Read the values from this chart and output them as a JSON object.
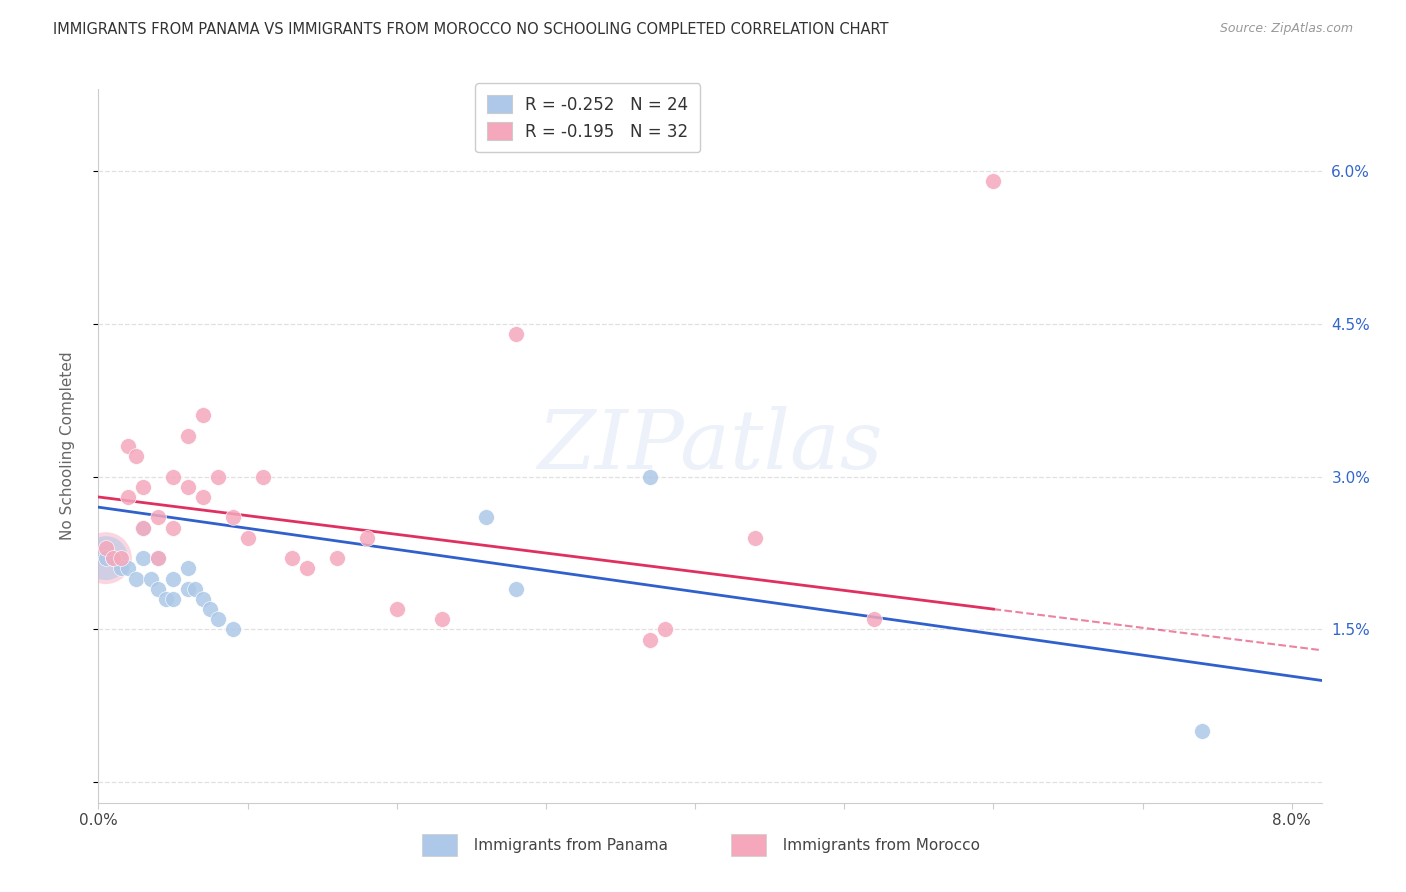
{
  "title": "IMMIGRANTS FROM PANAMA VS IMMIGRANTS FROM MOROCCO NO SCHOOLING COMPLETED CORRELATION CHART",
  "source": "Source: ZipAtlas.com",
  "ylabel": "No Schooling Completed",
  "xlim": [
    0.0,
    0.082
  ],
  "ylim": [
    -0.002,
    0.068
  ],
  "xtick_positions": [
    0.0,
    0.01,
    0.02,
    0.03,
    0.04,
    0.05,
    0.06,
    0.07,
    0.08
  ],
  "xticklabels": [
    "0.0%",
    "",
    "",
    "",
    "",
    "",
    "",
    "",
    "8.0%"
  ],
  "ytick_positions": [
    0.0,
    0.015,
    0.03,
    0.045,
    0.06
  ],
  "yticklabels_right": [
    "",
    "1.5%",
    "3.0%",
    "4.5%",
    "6.0%"
  ],
  "legend1_label": "R = -0.252   N = 24",
  "legend2_label": "R = -0.195   N = 32",
  "panama_color": "#adc8e8",
  "morocco_color": "#f5a8bc",
  "trendline_panama_color": "#3060cc",
  "trendline_morocco_color": "#e03060",
  "watermark_text": "ZIPatlas",
  "background_color": "#ffffff",
  "grid_color": "#dddddd",
  "panama_x": [
    0.0005,
    0.001,
    0.0015,
    0.002,
    0.0025,
    0.003,
    0.003,
    0.0035,
    0.004,
    0.004,
    0.0045,
    0.005,
    0.005,
    0.006,
    0.006,
    0.0065,
    0.007,
    0.0075,
    0.008,
    0.009,
    0.026,
    0.028,
    0.037,
    0.074
  ],
  "panama_y": [
    0.022,
    0.022,
    0.021,
    0.021,
    0.02,
    0.025,
    0.022,
    0.02,
    0.022,
    0.019,
    0.018,
    0.02,
    0.018,
    0.021,
    0.019,
    0.019,
    0.018,
    0.017,
    0.016,
    0.015,
    0.026,
    0.019,
    0.03,
    0.005
  ],
  "morocco_x": [
    0.0005,
    0.001,
    0.0015,
    0.002,
    0.002,
    0.0025,
    0.003,
    0.003,
    0.004,
    0.004,
    0.005,
    0.005,
    0.006,
    0.006,
    0.007,
    0.007,
    0.008,
    0.009,
    0.01,
    0.011,
    0.013,
    0.014,
    0.016,
    0.018,
    0.02,
    0.023,
    0.028,
    0.037,
    0.038,
    0.044,
    0.052,
    0.06
  ],
  "morocco_y": [
    0.023,
    0.022,
    0.022,
    0.033,
    0.028,
    0.032,
    0.029,
    0.025,
    0.026,
    0.022,
    0.03,
    0.025,
    0.034,
    0.029,
    0.036,
    0.028,
    0.03,
    0.026,
    0.024,
    0.03,
    0.022,
    0.021,
    0.022,
    0.024,
    0.017,
    0.016,
    0.044,
    0.014,
    0.015,
    0.024,
    0.016,
    0.059
  ],
  "trendline_panama_x0": 0.0,
  "trendline_panama_x1": 0.082,
  "trendline_morocco_x0": 0.0,
  "trendline_morocco_x1": 0.082,
  "trendline_morocco_dash_start": 0.06
}
